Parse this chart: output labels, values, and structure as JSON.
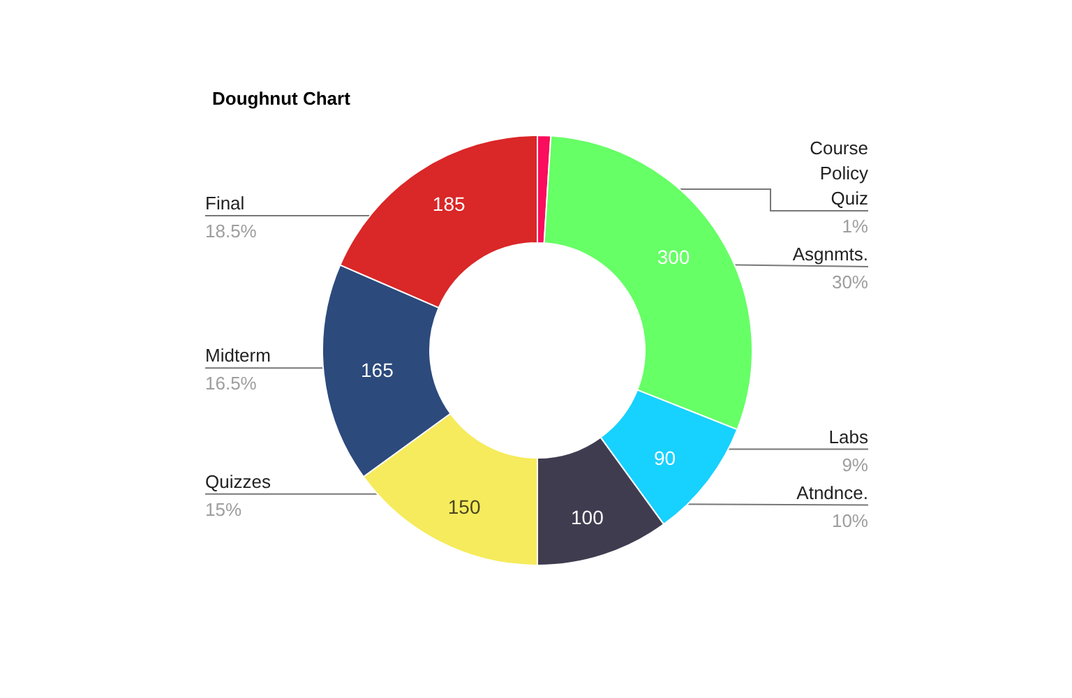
{
  "chart_data": {
    "type": "donut",
    "title": "Doughnut Chart",
    "categories": [
      "Course Policy Quiz",
      "Asgnmts.",
      "Labs",
      "Atndnce.",
      "Quizzes",
      "Midterm",
      "Final"
    ],
    "values": [
      10,
      300,
      90,
      100,
      150,
      165,
      185
    ],
    "colors": [
      "#fa0d5c",
      "#66ff66",
      "#17d1ff",
      "#403c50",
      "#f6eb5c",
      "#2c4a7c",
      "#da2727"
    ],
    "value_labels": [
      null,
      "300",
      "90",
      "100",
      "150",
      "165",
      "185"
    ],
    "annotations": [
      {
        "text": "1%",
        "x": "Course Policy Quiz"
      },
      {
        "text": "30%",
        "x": "Asgnmts."
      },
      {
        "text": "9%",
        "x": "Labs"
      },
      {
        "text": "10%",
        "x": "Atndnce."
      },
      {
        "text": "15%",
        "x": "Quizzes"
      },
      {
        "text": "16.5%",
        "x": "Midterm"
      },
      {
        "text": "18.5%",
        "x": "Final"
      }
    ]
  }
}
